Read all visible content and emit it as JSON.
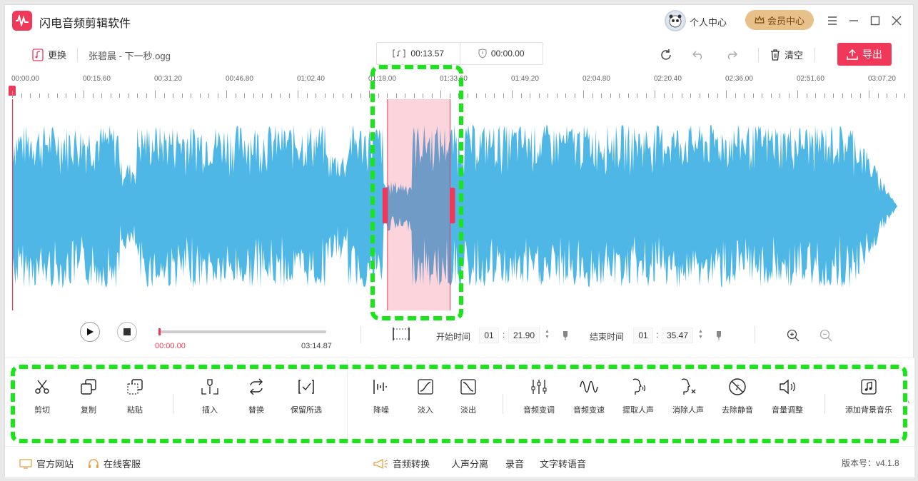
{
  "app": {
    "title": "闪电音频剪辑软件"
  },
  "header": {
    "user_center": "个人中心",
    "vip_center": "会员中心"
  },
  "toolbar": {
    "replace_label": "更换",
    "file_name": "张碧晨 - 下一秒.ogg",
    "selection_length": "00:13.57",
    "selection_other": "00:00.00",
    "clear_label": "清空",
    "export_label": "导出"
  },
  "ruler": {
    "labels": [
      "00:00.00",
      "00:15.60",
      "00:31.20",
      "00:46.80",
      "01:02.40",
      "01:18.00",
      "01:33.60",
      "01:49.20",
      "02:04.80",
      "02:20.40",
      "02:36.00",
      "02:51.60",
      "03:07.20"
    ]
  },
  "selection": {
    "start_fraction": 0.42,
    "end_fraction": 0.49
  },
  "transport": {
    "current_time": "00:00.00",
    "total_time": "03:14.87",
    "progress": 0.0,
    "start_label": "开始时间",
    "start_min": "01",
    "start_sec": "21.90",
    "end_label": "结束时间",
    "end_min": "01",
    "end_sec": "35.47",
    "colon": ":"
  },
  "tools": [
    {
      "name": "cut",
      "label": "剪切"
    },
    {
      "name": "copy",
      "label": "复制"
    },
    {
      "name": "paste",
      "label": "粘贴"
    },
    {
      "name": "insert",
      "label": "插入"
    },
    {
      "name": "replace",
      "label": "替换"
    },
    {
      "name": "keep-selection",
      "label": "保留所选"
    },
    {
      "name": "denoise",
      "label": "降噪"
    },
    {
      "name": "fade-in",
      "label": "淡入"
    },
    {
      "name": "fade-out",
      "label": "淡出"
    },
    {
      "name": "pitch",
      "label": "音频变调"
    },
    {
      "name": "speed",
      "label": "音频变速"
    },
    {
      "name": "extract-vocal",
      "label": "提取人声"
    },
    {
      "name": "remove-vocal",
      "label": "消除人声"
    },
    {
      "name": "remove-silence",
      "label": "去除静音"
    },
    {
      "name": "volume",
      "label": "音量调整"
    },
    {
      "name": "add-bgm",
      "label": "添加背景音乐"
    }
  ],
  "footer": {
    "website": "官方网站",
    "support": "在线客服",
    "convert": "音频转换",
    "separate": "人声分离",
    "record": "录音",
    "tts": "文字转语音",
    "version": "版本号：v4.1.8"
  },
  "colors": {
    "accent": "#f0395a",
    "wave": "#4eb7e6",
    "highlight": "#19e619",
    "selection": "#f6c6d2"
  }
}
